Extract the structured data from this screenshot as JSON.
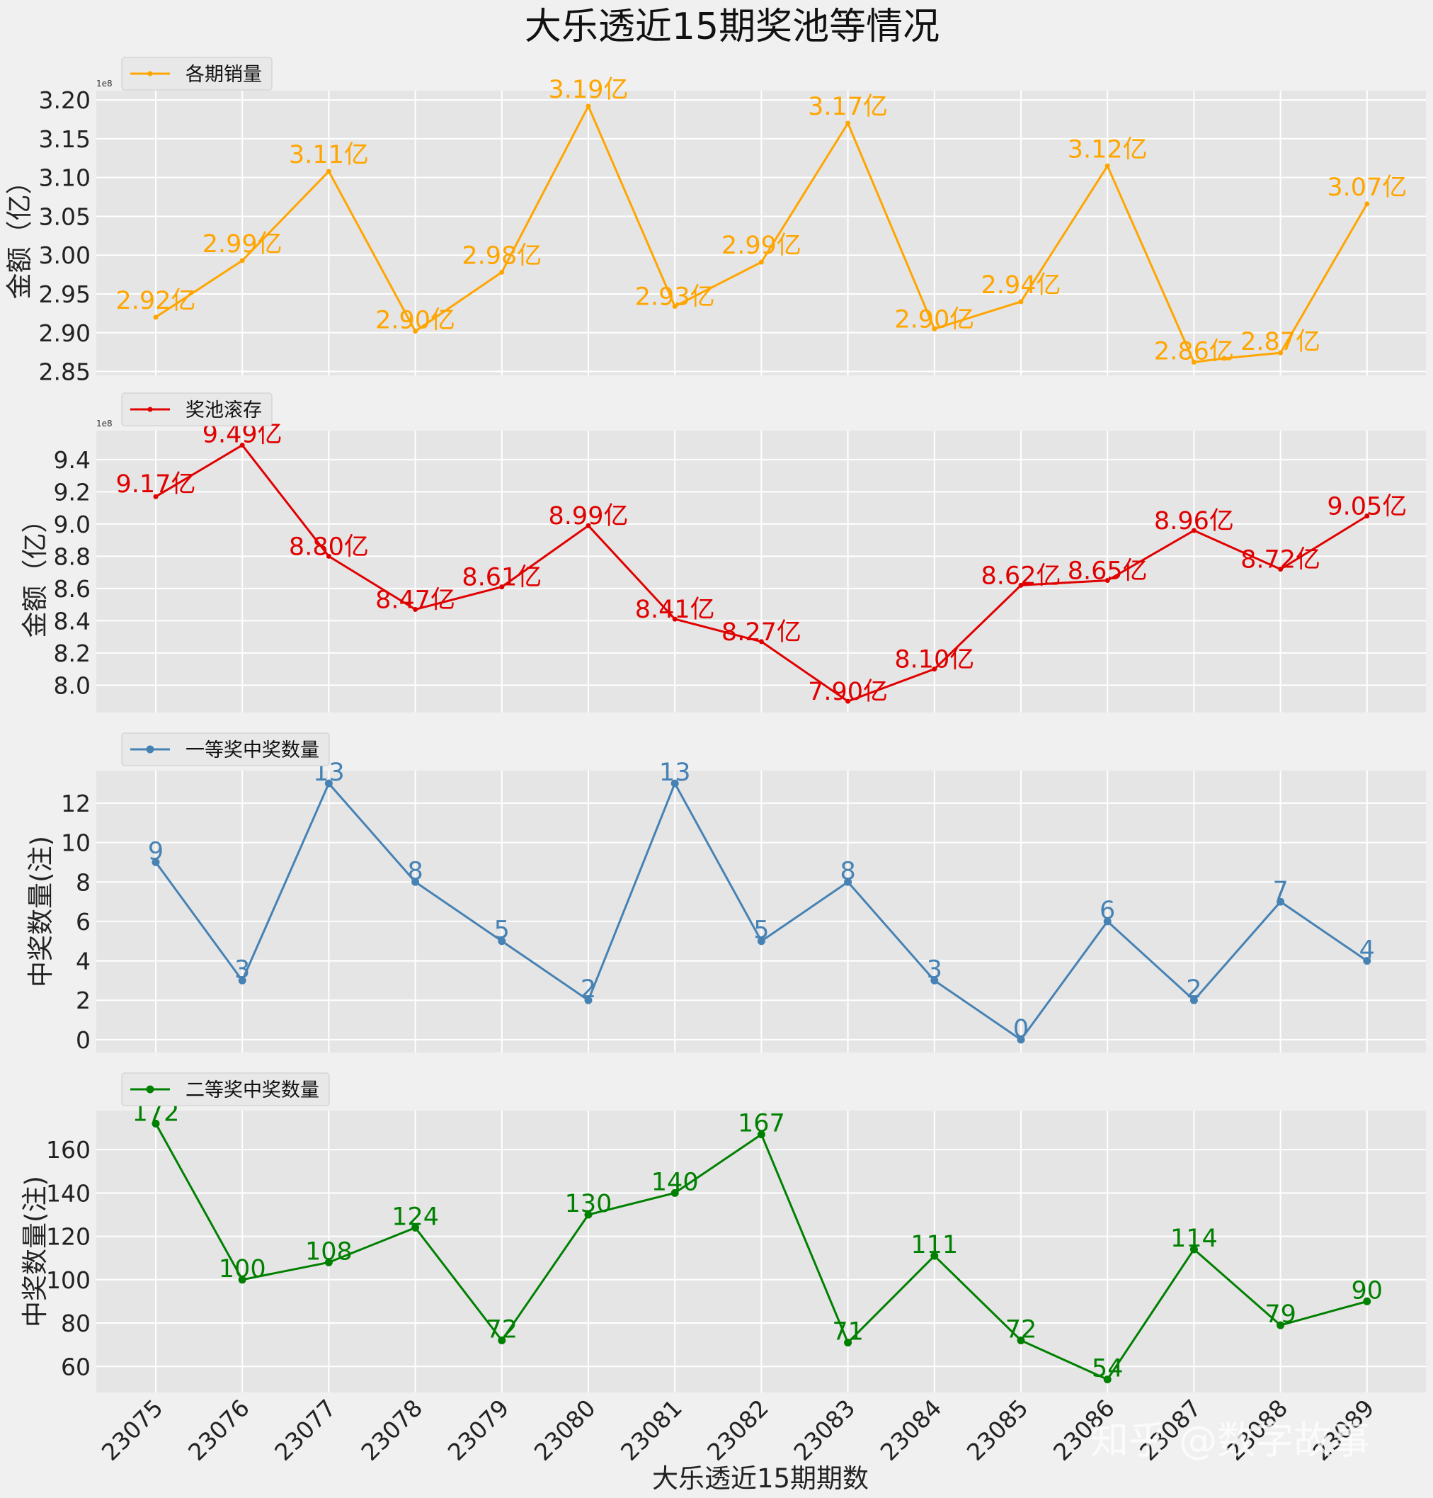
{
  "title": "大乐透近15期奖池等情况",
  "watermark": "知乎 @数字故事",
  "xlabel": "大乐透近15期期数",
  "chart_data": [
    {
      "type": "line",
      "legend": "各期销量",
      "color": "#FFA500",
      "marker": "dot-small",
      "ylabel": "金额（亿）",
      "offset_text": "1e8",
      "ylim": [
        2.845,
        3.212
      ],
      "yticks": [
        2.85,
        2.9,
        2.95,
        3.0,
        3.05,
        3.1,
        3.15,
        3.2
      ],
      "yticklabels": [
        "2.85",
        "2.90",
        "2.95",
        "3.00",
        "3.05",
        "3.10",
        "3.15",
        "3.20"
      ],
      "categories": [
        "23075",
        "23076",
        "23077",
        "23078",
        "23079",
        "23080",
        "23081",
        "23082",
        "23083",
        "23084",
        "23085",
        "23086",
        "23087",
        "23088",
        "23089"
      ],
      "values": [
        2.92,
        2.993,
        3.108,
        2.902,
        2.978,
        3.192,
        2.934,
        2.991,
        3.17,
        2.905,
        2.94,
        3.115,
        2.862,
        2.867,
        2.874,
        3.066
      ],
      "x_index": [
        0,
        1,
        2,
        3,
        4,
        5,
        6,
        7,
        8,
        9,
        10,
        11,
        12,
        12.35,
        13,
        14
      ],
      "labels": [
        "2.92亿",
        "2.99亿",
        "3.11亿",
        "2.90亿",
        "2.98亿",
        "3.19亿",
        "2.93亿",
        "2.99亿",
        "3.17亿",
        "2.90亿",
        "2.94亿",
        "3.12亿",
        "2.86亿",
        "",
        "2.87亿",
        "3.07亿"
      ]
    },
    {
      "type": "line",
      "legend": "奖池滚存",
      "color": "#E00000",
      "marker": "dot-small",
      "ylabel": "金额（亿）",
      "offset_text": "1e8",
      "ylim": [
        7.83,
        9.58
      ],
      "yticks": [
        8.0,
        8.2,
        8.4,
        8.6,
        8.8,
        9.0,
        9.2,
        9.4
      ],
      "yticklabels": [
        "8.0",
        "8.2",
        "8.4",
        "8.6",
        "8.8",
        "9.0",
        "9.2",
        "9.4"
      ],
      "categories": [
        "23075",
        "23076",
        "23077",
        "23078",
        "23079",
        "23080",
        "23081",
        "23082",
        "23083",
        "23084",
        "23085",
        "23086",
        "23087",
        "23088",
        "23089"
      ],
      "values": [
        9.17,
        9.49,
        8.8,
        8.47,
        8.61,
        8.99,
        8.41,
        8.27,
        7.9,
        8.1,
        8.62,
        8.65,
        8.96,
        8.72,
        9.05
      ],
      "labels": [
        "9.17亿",
        "9.49亿",
        "8.80亿",
        "8.47亿",
        "8.61亿",
        "8.99亿",
        "8.41亿",
        "8.27亿",
        "7.90亿",
        "8.10亿",
        "8.62亿",
        "8.65亿",
        "8.96亿",
        "8.72亿",
        "9.05亿"
      ]
    },
    {
      "type": "line",
      "legend": "一等奖中奖数量",
      "color": "#4682B4",
      "marker": "dot",
      "ylabel": "中奖数量(注)",
      "ylim": [
        -0.65,
        13.65
      ],
      "yticks": [
        0,
        2,
        4,
        6,
        8,
        10,
        12
      ],
      "yticklabels": [
        "0",
        "2",
        "4",
        "6",
        "8",
        "10",
        "12"
      ],
      "categories": [
        "23075",
        "23076",
        "23077",
        "23078",
        "23079",
        "23080",
        "23081",
        "23082",
        "23083",
        "23084",
        "23085",
        "23086",
        "23087",
        "23088",
        "23089"
      ],
      "values": [
        9,
        3,
        13,
        8,
        5,
        2,
        13,
        5,
        8,
        3,
        0,
        6,
        2,
        7,
        4
      ],
      "labels": [
        "9",
        "3",
        "13",
        "8",
        "5",
        "2",
        "13",
        "5",
        "8",
        "3",
        "0",
        "6",
        "2",
        "7",
        "4"
      ]
    },
    {
      "type": "line",
      "legend": "二等奖中奖数量",
      "color": "#008000",
      "marker": "dot",
      "ylabel": "中奖数量(注)",
      "ylim": [
        48,
        178
      ],
      "yticks": [
        60,
        80,
        100,
        120,
        140,
        160
      ],
      "yticklabels": [
        "60",
        "80",
        "100",
        "120",
        "140",
        "160"
      ],
      "categories": [
        "23075",
        "23076",
        "23077",
        "23078",
        "23079",
        "23080",
        "23081",
        "23082",
        "23083",
        "23084",
        "23085",
        "23086",
        "23087",
        "23088",
        "23089"
      ],
      "values": [
        172,
        100,
        108,
        124,
        72,
        130,
        140,
        167,
        71,
        111,
        72,
        54,
        114,
        79,
        90
      ],
      "labels": [
        "172",
        "100",
        "108",
        "124",
        "72",
        "130",
        "140",
        "167",
        "71",
        "111",
        "72",
        "54",
        "114",
        "79",
        "90"
      ]
    }
  ]
}
